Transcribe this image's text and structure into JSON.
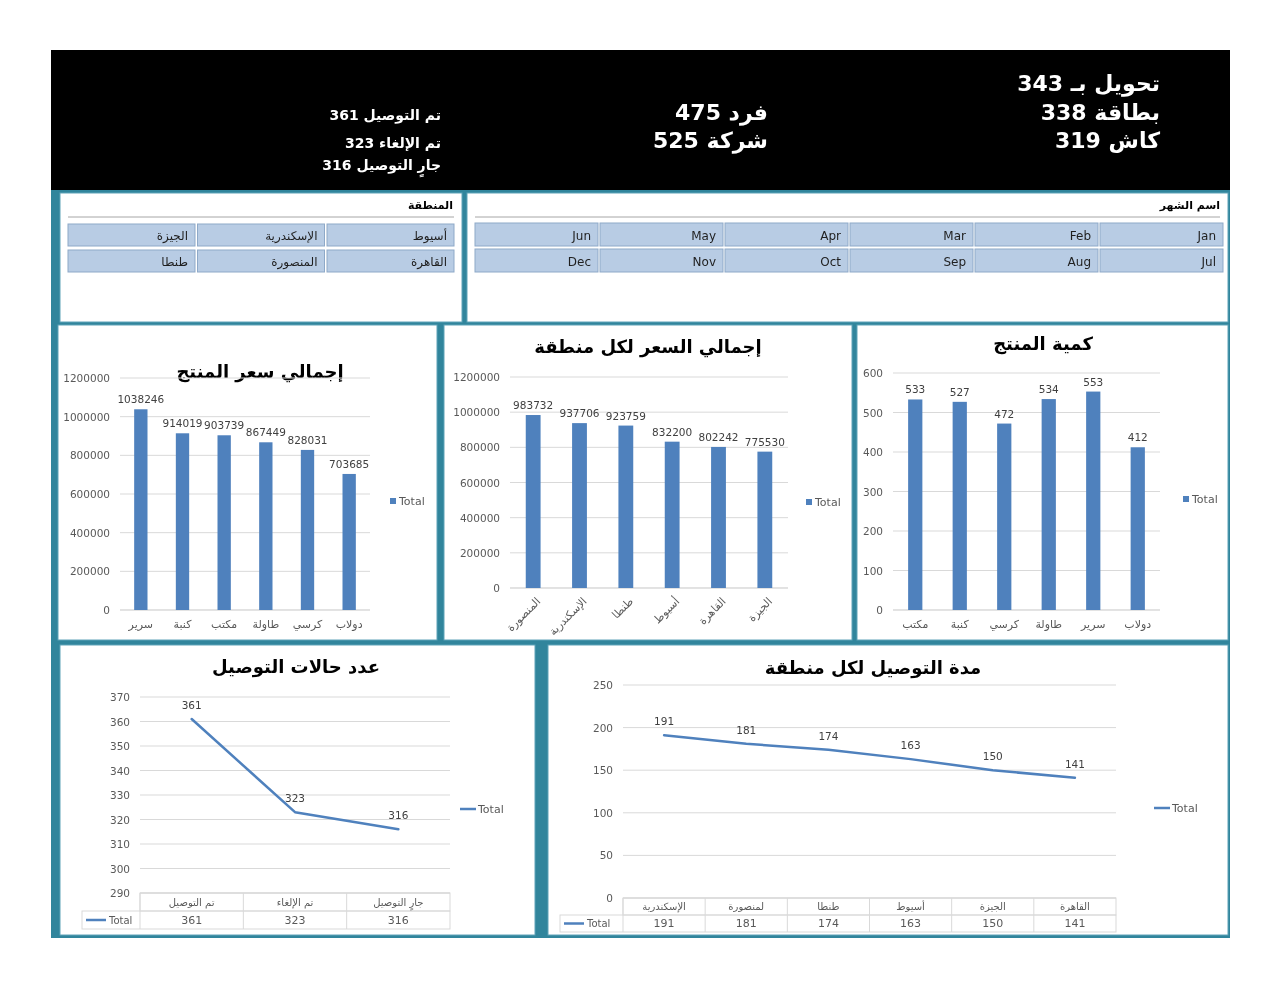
{
  "chart_data": [
    {
      "type": "other",
      "annotations": [
        "تحويل بـ 343",
        "بطاقة 338",
        "كاش 319",
        "فرد 475",
        "شركة 525",
        "تم التوصيل 361",
        "تم الإلغاء 323",
        "جارٍ التوصيل 316"
      ]
    },
    {
      "type": "other",
      "title": "المنطقة",
      "annotations": [
        "أسيوط",
        "الإسكندرية",
        "الجيزة",
        "القاهرة",
        "المنصورة",
        "طنطا"
      ]
    },
    {
      "type": "other",
      "title": "اسم الشهر",
      "annotations": [
        "Jan",
        "Feb",
        "Mar",
        "Apr",
        "May",
        "Jun",
        "Jul",
        "Aug",
        "Sep",
        "Oct",
        "Nov",
        "Dec"
      ]
    },
    {
      "type": "bar",
      "title": "إجمالي سعر المنتج",
      "categories": [
        "سرير",
        "كنبة",
        "مكتب",
        "طاولة",
        "كرسي",
        "دولاب"
      ],
      "series": [
        {
          "name": "Total",
          "color": "#4f81bd",
          "values": [
            1038246,
            914019,
            903739,
            867449,
            828031,
            703685
          ]
        }
      ],
      "ylim": [
        0,
        1200000
      ],
      "yticks": [
        0,
        200000,
        400000,
        600000,
        800000,
        1000000,
        1200000
      ],
      "grid": "y",
      "legend": "right",
      "data_labels": true
    },
    {
      "type": "bar",
      "title": "إجمالي السعر لكل منطقة",
      "categories": [
        "المنصورة",
        "الإسكندرية",
        "طنطا",
        "أسيوط",
        "القاهرة",
        "الجيزة"
      ],
      "series": [
        {
          "name": "Total",
          "color": "#4f81bd",
          "values": [
            983732,
            937706,
            923759,
            832200,
            802242,
            775530
          ]
        }
      ],
      "ylim": [
        0,
        1200000
      ],
      "yticks": [
        0,
        200000,
        400000,
        600000,
        800000,
        1000000,
        1200000
      ],
      "grid": "y",
      "legend": "right",
      "data_labels": true
    },
    {
      "type": "bar",
      "title": "كمية المنتج",
      "categories": [
        "مكتب",
        "كنبة",
        "كرسي",
        "طاولة",
        "سرير",
        "دولاب"
      ],
      "series": [
        {
          "name": "Total",
          "color": "#4f81bd",
          "values": [
            533,
            527,
            472,
            534,
            553,
            412
          ]
        }
      ],
      "ylim": [
        0,
        600
      ],
      "yticks": [
        0,
        100,
        200,
        300,
        400,
        500,
        600
      ],
      "grid": "y",
      "legend": "right",
      "data_labels": true
    },
    {
      "type": "line",
      "title": "عدد حالات التوصيل",
      "categories": [
        "تم التوصيل",
        "تم الإلغاء",
        "جارٍ التوصيل"
      ],
      "series": [
        {
          "name": "Total",
          "color": "#4f81bd",
          "values": [
            361,
            323,
            316
          ]
        }
      ],
      "ylim": [
        290,
        370
      ],
      "yticks": [
        290,
        300,
        310,
        320,
        330,
        340,
        350,
        360,
        370
      ],
      "grid": "y",
      "legend": "right",
      "data_labels": true,
      "annotations": [
        "361",
        "323",
        "316"
      ]
    },
    {
      "type": "line",
      "title": "مدة التوصيل لكل منطقة",
      "categories": [
        "الإسكندرية",
        "لمنصورة",
        "طنطا",
        "أسيوط",
        "الجيزة",
        "القاهرة"
      ],
      "series": [
        {
          "name": "Total",
          "color": "#4f81bd",
          "values": [
            191,
            181,
            174,
            163,
            150,
            141
          ]
        }
      ],
      "ylim": [
        0,
        250
      ],
      "yticks": [
        0,
        50,
        100,
        150,
        200,
        250
      ],
      "grid": "y",
      "legend": "right",
      "data_labels": true,
      "annotations": [
        "191",
        "181",
        "174",
        "163",
        "150",
        "141"
      ]
    }
  ]
}
